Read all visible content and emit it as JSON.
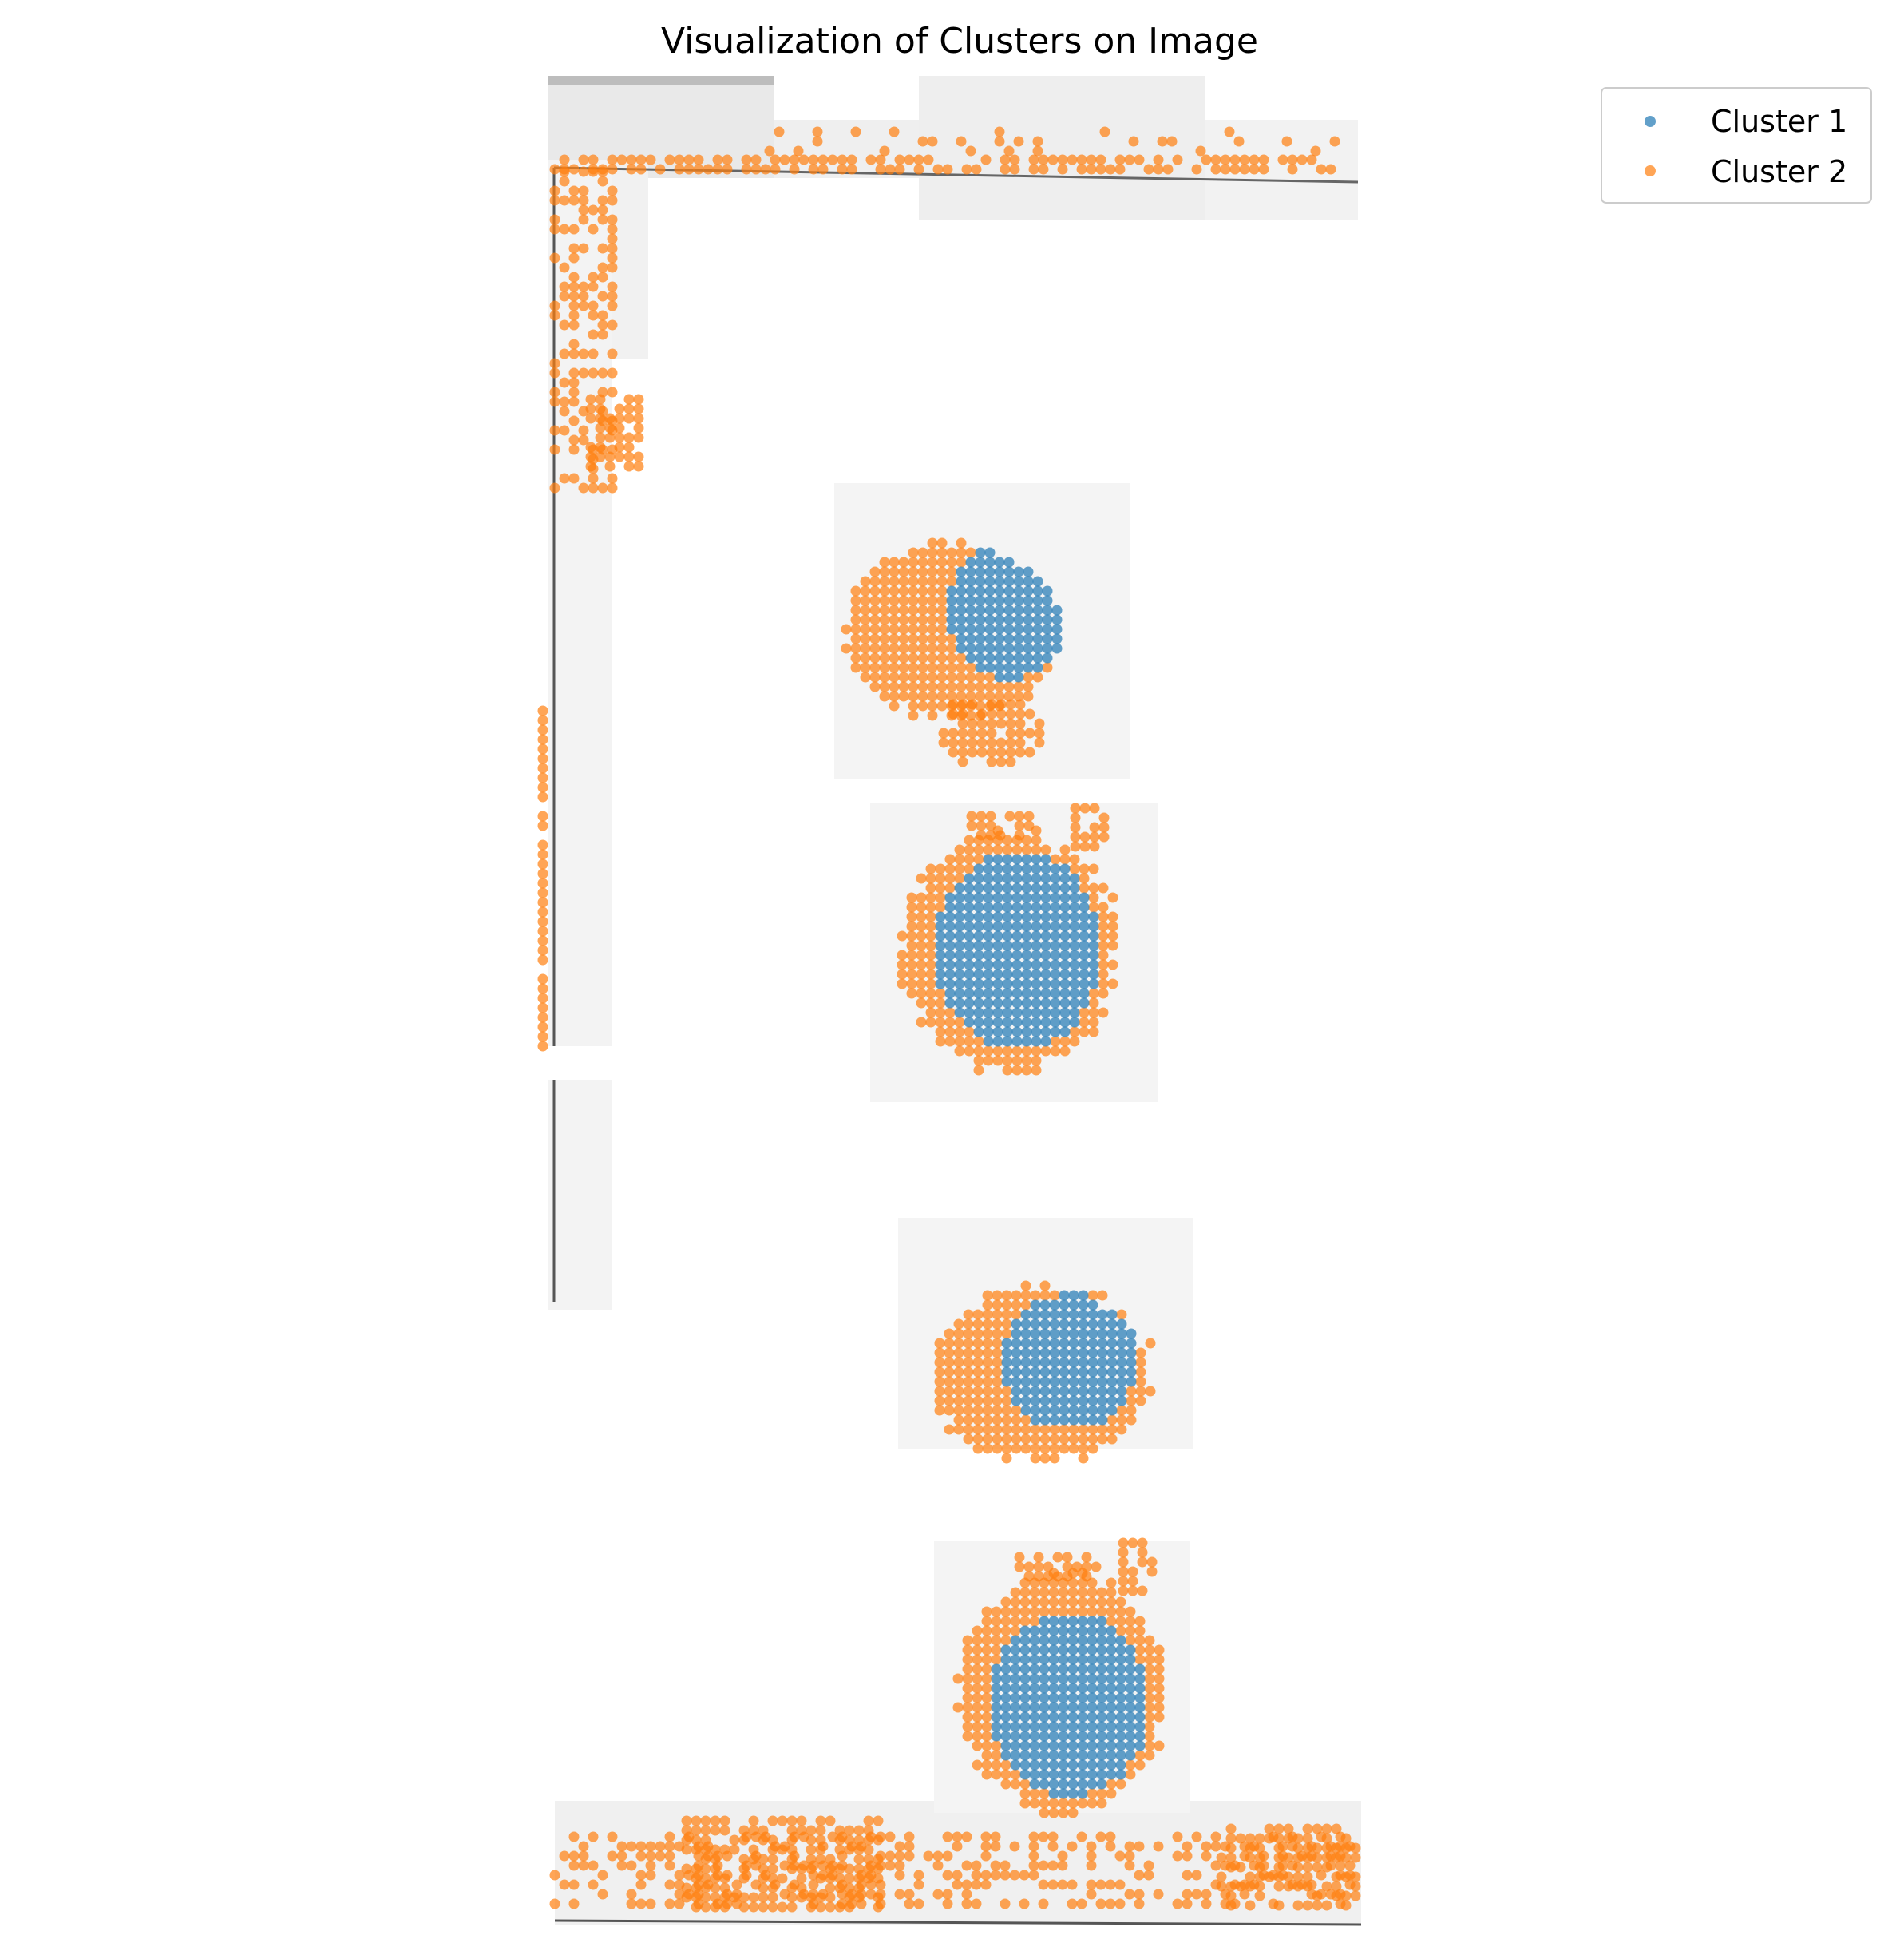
{
  "chart_data": {
    "type": "scatter",
    "title": "Visualization of Clusters on Image",
    "xlabel": "",
    "ylabel": "",
    "axes_visible": false,
    "grid": false,
    "background": "grayscale tissue slide image with four tissue sections",
    "legend": {
      "placement": "upper right outside axes",
      "entries": [
        "Cluster 1",
        "Cluster 2"
      ]
    },
    "series": [
      {
        "name": "Cluster 1",
        "color": "#1f77b4",
        "alpha": 0.7
      },
      {
        "name": "Cluster 2",
        "color": "#ff7f0e",
        "alpha": 0.7
      }
    ]
  }
}
